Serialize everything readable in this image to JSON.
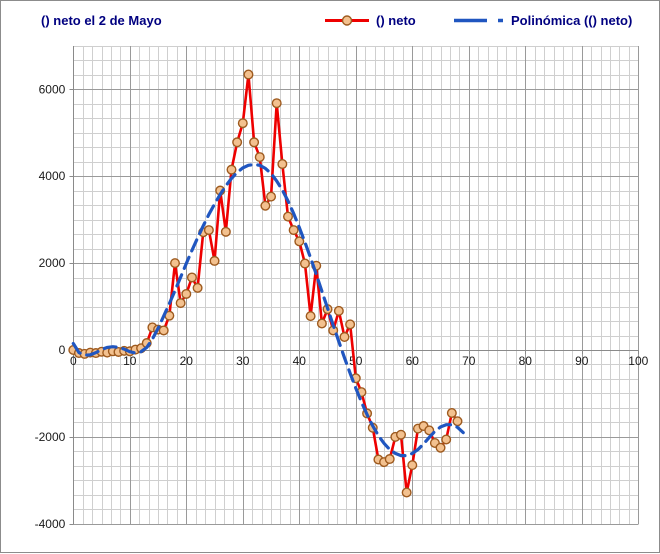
{
  "chart": {
    "colors": {
      "title_text": "#000080",
      "legend_text": "#000080",
      "series_line": "#ee0000",
      "marker_fill": "#f3c18f",
      "marker_stroke": "#9e5a1e",
      "trendline": "#2056c0",
      "grid_minor": "#cfcfcf",
      "grid_major": "#9a9a9a",
      "axis": "#8a8a8a",
      "tick_text": "#1a1a1a"
    }
  },
  "chart_data": {
    "type": "line",
    "title": "() neto el 2 de Mayo",
    "legend_position": "top",
    "grid": {
      "major": true,
      "minor": true
    },
    "x_axis": {
      "min": 0,
      "max": 100,
      "major": 10,
      "minor_per_major": 6,
      "tick_labels": [
        0,
        10,
        20,
        30,
        40,
        50,
        60,
        70,
        80,
        90,
        100
      ]
    },
    "y_axis": {
      "min": -4000,
      "max": 7000,
      "major": 2000,
      "minor_per_major": 6,
      "tick_labels": [
        6000,
        4000,
        2000,
        0,
        -2000,
        -4000
      ]
    },
    "series": [
      {
        "name": "() neto",
        "type": "line-with-markers",
        "color": "#ee0000",
        "marker": "circle",
        "marker_fill": "#f3c18f",
        "marker_stroke": "#9e5a1e",
        "points": [
          [
            0,
            0
          ],
          [
            1,
            -70
          ],
          [
            2,
            -90
          ],
          [
            3,
            -60
          ],
          [
            4,
            -70
          ],
          [
            5,
            -40
          ],
          [
            6,
            -60
          ],
          [
            7,
            -30
          ],
          [
            8,
            -45
          ],
          [
            9,
            -20
          ],
          [
            10,
            -30
          ],
          [
            11,
            10
          ],
          [
            12,
            40
          ],
          [
            13,
            160
          ],
          [
            14,
            520
          ],
          [
            15,
            470
          ],
          [
            16,
            450
          ],
          [
            17,
            790
          ],
          [
            18,
            2000
          ],
          [
            19,
            1080
          ],
          [
            20,
            1290
          ],
          [
            21,
            1670
          ],
          [
            22,
            1430
          ],
          [
            23,
            2710
          ],
          [
            24,
            2760
          ],
          [
            25,
            2050
          ],
          [
            26,
            3670
          ],
          [
            27,
            2720
          ],
          [
            28,
            4150
          ],
          [
            29,
            4780
          ],
          [
            30,
            5220
          ],
          [
            31,
            6340
          ],
          [
            32,
            4780
          ],
          [
            33,
            4440
          ],
          [
            34,
            3320
          ],
          [
            35,
            3530
          ],
          [
            36,
            5680
          ],
          [
            37,
            4280
          ],
          [
            38,
            3070
          ],
          [
            39,
            2760
          ],
          [
            40,
            2500
          ],
          [
            41,
            1990
          ],
          [
            42,
            780
          ],
          [
            43,
            1940
          ],
          [
            44,
            610
          ],
          [
            45,
            940
          ],
          [
            46,
            450
          ],
          [
            47,
            900
          ],
          [
            48,
            300
          ],
          [
            49,
            590
          ],
          [
            50,
            -650
          ],
          [
            51,
            -970
          ],
          [
            52,
            -1460
          ],
          [
            53,
            -1790
          ],
          [
            54,
            -2520
          ],
          [
            55,
            -2580
          ],
          [
            56,
            -2510
          ],
          [
            57,
            -2000
          ],
          [
            58,
            -1950
          ],
          [
            59,
            -3280
          ],
          [
            60,
            -2650
          ],
          [
            61,
            -1810
          ],
          [
            62,
            -1750
          ],
          [
            63,
            -1850
          ],
          [
            64,
            -2140
          ],
          [
            65,
            -2250
          ],
          [
            66,
            -2060
          ],
          [
            67,
            -1450
          ],
          [
            68,
            -1640
          ]
        ]
      },
      {
        "name": "Polinómica (() neto)",
        "type": "polynomial-trendline",
        "color": "#2056c0",
        "dashed": true,
        "points": [
          [
            0,
            150
          ],
          [
            1,
            -60
          ],
          [
            2,
            -120
          ],
          [
            3,
            -110
          ],
          [
            4,
            -60
          ],
          [
            5,
            10
          ],
          [
            6,
            60
          ],
          [
            7,
            75
          ],
          [
            8,
            60
          ],
          [
            9,
            20
          ],
          [
            10,
            -40
          ],
          [
            11,
            -70
          ],
          [
            12,
            -40
          ],
          [
            13,
            60
          ],
          [
            14,
            250
          ],
          [
            15,
            500
          ],
          [
            16,
            780
          ],
          [
            17,
            1070
          ],
          [
            18,
            1370
          ],
          [
            19,
            1680
          ],
          [
            20,
            1990
          ],
          [
            21,
            2290
          ],
          [
            22,
            2580
          ],
          [
            23,
            2860
          ],
          [
            24,
            3120
          ],
          [
            25,
            3360
          ],
          [
            26,
            3580
          ],
          [
            27,
            3780
          ],
          [
            28,
            3950
          ],
          [
            29,
            4090
          ],
          [
            30,
            4190
          ],
          [
            31,
            4250
          ],
          [
            32,
            4270
          ],
          [
            33,
            4250
          ],
          [
            34,
            4180
          ],
          [
            35,
            4060
          ],
          [
            36,
            3890
          ],
          [
            37,
            3680
          ],
          [
            38,
            3430
          ],
          [
            39,
            3140
          ],
          [
            40,
            2820
          ],
          [
            41,
            2480
          ],
          [
            42,
            2120
          ],
          [
            43,
            1740
          ],
          [
            44,
            1350
          ],
          [
            45,
            960
          ],
          [
            46,
            570
          ],
          [
            47,
            190
          ],
          [
            48,
            -180
          ],
          [
            49,
            -540
          ],
          [
            50,
            -880
          ],
          [
            51,
            -1200
          ],
          [
            52,
            -1490
          ],
          [
            53,
            -1750
          ],
          [
            54,
            -1970
          ],
          [
            55,
            -2150
          ],
          [
            56,
            -2290
          ],
          [
            57,
            -2380
          ],
          [
            58,
            -2430
          ],
          [
            59,
            -2430
          ],
          [
            60,
            -2380
          ],
          [
            61,
            -2290
          ],
          [
            62,
            -2160
          ],
          [
            63,
            -2010
          ],
          [
            64,
            -1870
          ],
          [
            65,
            -1770
          ],
          [
            66,
            -1720
          ],
          [
            67,
            -1720
          ],
          [
            68,
            -1780
          ],
          [
            69,
            -1900
          ]
        ]
      }
    ]
  }
}
